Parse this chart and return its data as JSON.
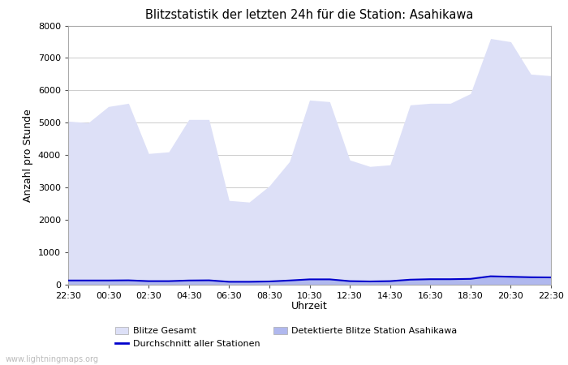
{
  "title": "Blitzstatistik der letzten 24h für die Station: Asahikawa",
  "xlabel": "Uhrzeit",
  "ylabel": "Anzahl pro Stunde",
  "background_color": "#ffffff",
  "plot_bg_color": "#ffffff",
  "grid_color": "#cccccc",
  "ylim": [
    0,
    8000
  ],
  "yticks": [
    0,
    1000,
    2000,
    3000,
    4000,
    5000,
    6000,
    7000,
    8000
  ],
  "x_labels": [
    "22:30",
    "00:30",
    "02:30",
    "04:30",
    "06:30",
    "08:30",
    "10:30",
    "12:30",
    "14:30",
    "16:30",
    "18:30",
    "20:30",
    "22:30"
  ],
  "watermark": "www.lightningmaps.org",
  "legend_items": [
    {
      "label": "Blitze Gesamt",
      "type": "fill",
      "color": "#dde0f7"
    },
    {
      "label": "Detektierte Blitze Station Asahikawa",
      "type": "fill",
      "color": "#b0b8ee"
    },
    {
      "label": "Durchschnitt aller Stationen",
      "type": "line",
      "color": "#0000cc"
    }
  ],
  "blitze_gesamt_y": [
    5050,
    5000,
    5500,
    5600,
    4050,
    4100,
    5100,
    5100,
    2600,
    2550,
    3050,
    3800,
    5700,
    5650,
    3850,
    3650,
    3700,
    5550,
    5600,
    5600,
    5900,
    7600,
    7500,
    6500,
    6450
  ],
  "detektierte_y": [
    130,
    130,
    130,
    135,
    110,
    110,
    130,
    135,
    90,
    90,
    100,
    130,
    165,
    165,
    110,
    100,
    110,
    155,
    170,
    170,
    180,
    260,
    245,
    230,
    225
  ],
  "durchschnitt_y": [
    130,
    130,
    130,
    135,
    110,
    110,
    130,
    135,
    90,
    90,
    100,
    130,
    165,
    165,
    110,
    100,
    110,
    155,
    170,
    170,
    180,
    260,
    245,
    230,
    225
  ]
}
